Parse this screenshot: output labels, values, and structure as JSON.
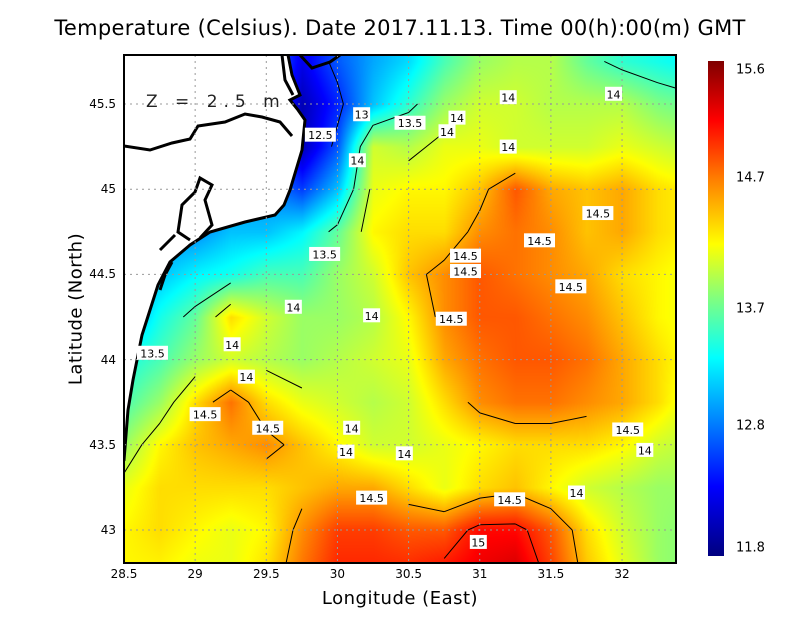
{
  "chart_data": {
    "type": "heatmap",
    "title": "Temperature (Celsius). Date 2017.11.13. Time 00(h):00(m) GMT",
    "xlabel": "Longitude (East)",
    "ylabel": "Latitude (North)",
    "depth_label": "Z = 2.5 m",
    "xlim": [
      28.5,
      32.39
    ],
    "ylim": [
      42.81,
      45.79
    ],
    "xticks": [
      "28.5",
      "29",
      "29.5",
      "30",
      "30.5",
      "31",
      "31.5",
      "32"
    ],
    "yticks": [
      "45.5",
      "45",
      "44.5",
      "44",
      "43.5",
      "43"
    ],
    "grid": true,
    "colorbar": {
      "min": 11.8,
      "max": 15.6,
      "labels": [
        "15.6",
        "14.7",
        "13.7",
        "12.8",
        "11.8"
      ],
      "colormap": "jet",
      "position": "right"
    },
    "contour_levels": [
      12.5,
      13,
      13.5,
      14,
      14.5,
      15
    ],
    "grid_lon": [
      28.5,
      28.75,
      29,
      29.25,
      29.5,
      29.75,
      30,
      30.25,
      30.5,
      30.75,
      31,
      31.25,
      31.5,
      31.75,
      32,
      32.25,
      32.5
    ],
    "grid_lat": [
      45.75,
      45.5,
      45.25,
      45.0,
      44.75,
      44.5,
      44.25,
      44.0,
      43.75,
      43.5,
      43.25,
      43.0,
      42.75
    ],
    "values": [
      [
        null,
        null,
        null,
        null,
        null,
        12.2,
        12.6,
        12.9,
        13.1,
        13.5,
        13.8,
        13.9,
        13.9,
        13.6,
        13.4,
        13.3,
        13.2
      ],
      [
        null,
        null,
        null,
        null,
        null,
        12.0,
        12.4,
        13.0,
        13.4,
        13.8,
        14.0,
        14.0,
        13.9,
        13.9,
        13.9,
        13.7,
        13.6
      ],
      [
        null,
        null,
        null,
        null,
        null,
        12.0,
        12.6,
        14.0,
        13.9,
        14.1,
        14.1,
        14.0,
        14.0,
        14.0,
        14.1,
        14.0,
        13.9
      ],
      [
        null,
        null,
        null,
        null,
        null,
        12.5,
        13.0,
        14.1,
        14.2,
        14.2,
        14.4,
        14.8,
        14.5,
        14.4,
        14.5,
        14.3,
        14.2
      ],
      [
        null,
        null,
        null,
        13.0,
        13.0,
        13.2,
        13.6,
        14.2,
        14.3,
        14.3,
        14.6,
        14.7,
        14.6,
        14.4,
        14.5,
        14.3,
        14.2
      ],
      [
        null,
        13.0,
        13.2,
        13.3,
        13.5,
        13.5,
        13.8,
        14.0,
        14.4,
        14.6,
        14.8,
        14.7,
        14.6,
        14.5,
        14.3,
        14.2,
        14.1
      ],
      [
        null,
        13.3,
        13.6,
        14.3,
        14.0,
        13.8,
        13.8,
        13.9,
        14.2,
        14.6,
        14.8,
        14.8,
        14.7,
        14.6,
        14.4,
        14.2,
        14.1
      ],
      [
        13.3,
        13.5,
        13.8,
        14.0,
        13.9,
        13.8,
        13.9,
        14.0,
        14.1,
        14.5,
        14.7,
        14.8,
        14.8,
        14.7,
        14.5,
        14.3,
        14.1
      ],
      [
        13.5,
        13.8,
        14.3,
        14.7,
        14.3,
        14.1,
        14.0,
        13.9,
        14.0,
        14.3,
        14.6,
        14.7,
        14.7,
        14.6,
        14.5,
        14.3,
        14.0
      ],
      [
        13.8,
        14.2,
        14.4,
        14.5,
        14.6,
        14.4,
        14.2,
        14.0,
        14.0,
        14.1,
        14.2,
        14.3,
        14.3,
        14.3,
        14.2,
        14.0,
        13.9
      ],
      [
        14.1,
        14.3,
        14.3,
        14.3,
        14.3,
        14.4,
        14.5,
        14.5,
        14.3,
        14.1,
        14.3,
        14.4,
        14.2,
        14.0,
        13.9,
        13.8,
        13.8
      ],
      [
        14.2,
        14.3,
        14.2,
        14.1,
        14.2,
        14.6,
        14.9,
        14.9,
        14.8,
        14.8,
        15.1,
        15.1,
        14.8,
        14.3,
        14.0,
        13.8,
        13.7
      ],
      [
        14.2,
        14.2,
        14.1,
        14.1,
        14.3,
        14.7,
        15.0,
        15.0,
        15.0,
        15.1,
        15.2,
        15.3,
        14.9,
        14.4,
        14.1,
        13.8,
        13.7
      ]
    ],
    "annotations": [
      {
        "text": "13",
        "lon": 30.17,
        "lat": 45.44
      },
      {
        "text": "13.5",
        "lon": 30.51,
        "lat": 45.39
      },
      {
        "text": "14",
        "lon": 31.2,
        "lat": 45.54
      },
      {
        "text": "14",
        "lon": 31.94,
        "lat": 45.56
      },
      {
        "text": "14",
        "lon": 30.84,
        "lat": 45.42
      },
      {
        "text": "14",
        "lon": 30.77,
        "lat": 45.34
      },
      {
        "text": "12.5",
        "lon": 29.88,
        "lat": 45.32
      },
      {
        "text": "14",
        "lon": 30.14,
        "lat": 45.17
      },
      {
        "text": "14",
        "lon": 31.2,
        "lat": 45.25
      },
      {
        "text": "14.5",
        "lon": 31.83,
        "lat": 44.86
      },
      {
        "text": "14.5",
        "lon": 31.42,
        "lat": 44.7
      },
      {
        "text": "13.5",
        "lon": 29.91,
        "lat": 44.62
      },
      {
        "text": "14.5",
        "lon": 30.9,
        "lat": 44.61
      },
      {
        "text": "14.5",
        "lon": 30.9,
        "lat": 44.52
      },
      {
        "text": "14.5",
        "lon": 31.64,
        "lat": 44.43
      },
      {
        "text": "14",
        "lon": 29.69,
        "lat": 44.31
      },
      {
        "text": "14",
        "lon": 30.24,
        "lat": 44.26
      },
      {
        "text": "14.5",
        "lon": 30.8,
        "lat": 44.24
      },
      {
        "text": "14",
        "lon": 29.26,
        "lat": 44.09
      },
      {
        "text": "13.5",
        "lon": 28.7,
        "lat": 44.04
      },
      {
        "text": "14",
        "lon": 29.36,
        "lat": 43.9
      },
      {
        "text": "14.5",
        "lon": 29.07,
        "lat": 43.68
      },
      {
        "text": "14.5",
        "lon": 29.51,
        "lat": 43.6
      },
      {
        "text": "14",
        "lon": 30.1,
        "lat": 43.6
      },
      {
        "text": "14.5",
        "lon": 32.04,
        "lat": 43.59
      },
      {
        "text": "14",
        "lon": 30.06,
        "lat": 43.46
      },
      {
        "text": "14",
        "lon": 30.47,
        "lat": 43.45
      },
      {
        "text": "14",
        "lon": 32.16,
        "lat": 43.47
      },
      {
        "text": "14",
        "lon": 31.68,
        "lat": 43.22
      },
      {
        "text": "14.5",
        "lon": 30.24,
        "lat": 43.19
      },
      {
        "text": "14.5",
        "lon": 31.21,
        "lat": 43.18
      },
      {
        "text": "15",
        "lon": 30.99,
        "lat": 42.93
      }
    ]
  }
}
